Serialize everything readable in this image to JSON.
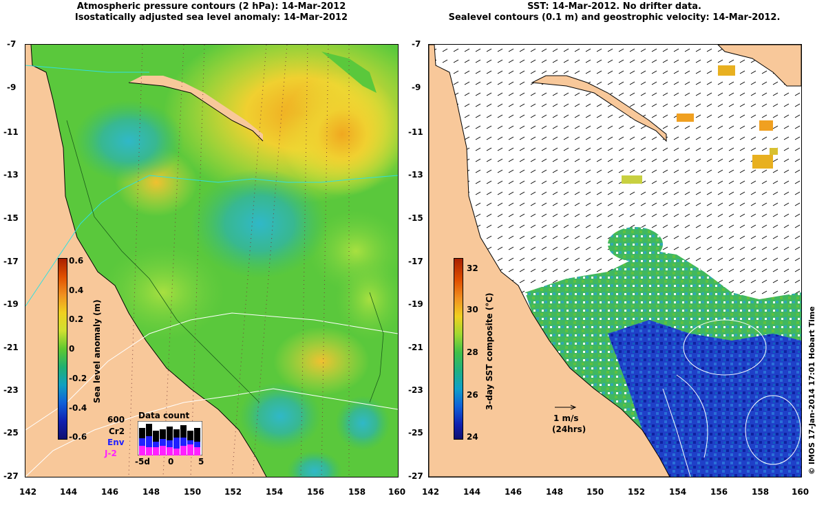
{
  "left_panel": {
    "title_line1": "Atmospheric pressure contours (2 hPa): 14-Mar-2012",
    "title_line2": "Isostatically adjusted sea level anomaly: 14-Mar-2012",
    "colorbar_label": "Sea level anomaly (m)",
    "colorbar_ticks": [
      "0.6",
      "0.4",
      "0.2",
      "0",
      "-0.2",
      "-0.4",
      "-0.6"
    ],
    "data_count": {
      "title": "Data count",
      "max_label": "600",
      "series": [
        {
          "name": "Cr2",
          "color": "#000000"
        },
        {
          "name": "Env",
          "color": "#2020ff"
        },
        {
          "name": "J-2",
          "color": "#ff20ff"
        }
      ],
      "x_ticks": [
        "-5d",
        "0",
        "5"
      ]
    }
  },
  "right_panel": {
    "title_line1": "SST: 14-Mar-2012. No drifter data.",
    "title_line2": "Sealevel contours (0.1 m) and geostrophic velocity: 14-Mar-2012.",
    "colorbar_label": "3-day SST composite (°C)",
    "colorbar_ticks": [
      "32",
      "30",
      "28",
      "26",
      "24"
    ],
    "velocity_scale_line1": "1 m/s",
    "velocity_scale_line2": "(24hrs)"
  },
  "axes": {
    "lon_ticks": [
      "142",
      "144",
      "146",
      "148",
      "150",
      "152",
      "154",
      "156",
      "158",
      "160"
    ],
    "lat_ticks": [
      "-7",
      "-9",
      "-11",
      "-13",
      "-15",
      "-17",
      "-19",
      "-21",
      "-23",
      "-25",
      "-27"
    ]
  },
  "credit": "© IMOS 17-Jan-2014 17:01 Hobart Time",
  "colors": {
    "land": "#f8c89a",
    "ocean_green": "#4cc83a",
    "ocean_yellow": "#e6e632"
  }
}
